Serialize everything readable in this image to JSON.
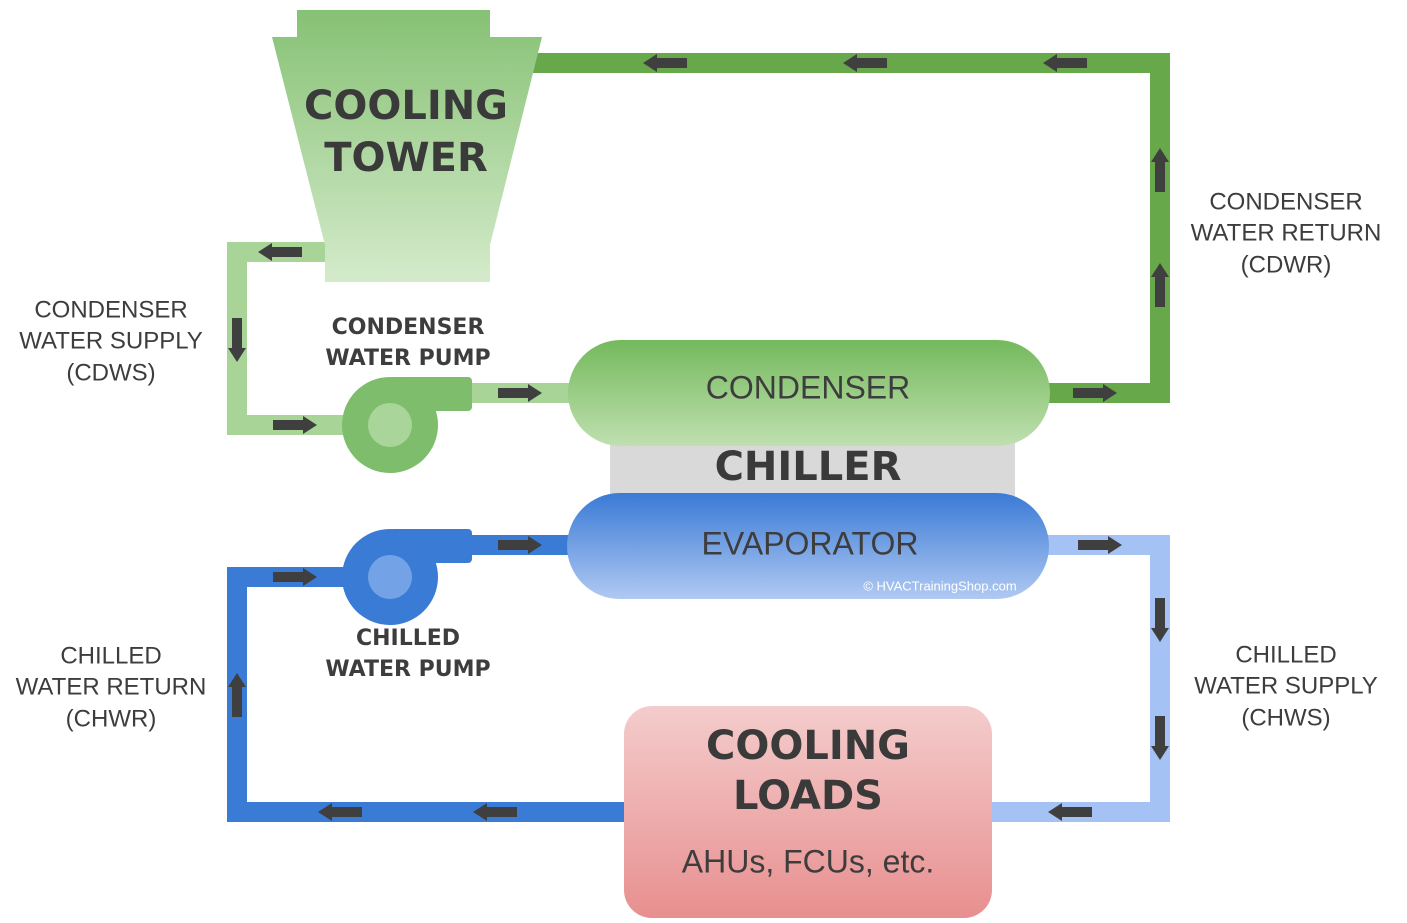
{
  "cooling_tower": {
    "label": [
      "COOLING",
      "TOWER"
    ]
  },
  "condenser_water_return": {
    "label": [
      "CONDENSER",
      "WATER RETURN",
      "(CDWR)"
    ]
  },
  "condenser_water_supply": {
    "label": [
      "CONDENSER",
      "WATER SUPPLY",
      "(CDWS)"
    ]
  },
  "condenser_water_pump": {
    "label": [
      "CONDENSER",
      "WATER PUMP"
    ]
  },
  "condenser": {
    "label": "CONDENSER"
  },
  "chiller": {
    "label": "CHILLER"
  },
  "evaporator": {
    "label": "EVAPORATOR",
    "credit": "© HVACTrainingShop.com"
  },
  "chilled_water_pump": {
    "label": [
      "CHILLED",
      "WATER PUMP"
    ]
  },
  "chilled_water_return": {
    "label": [
      "CHILLED",
      "WATER RETURN",
      "(CHWR)"
    ]
  },
  "chilled_water_supply": {
    "label": [
      "CHILLED",
      "WATER SUPPLY",
      "(CHWS)"
    ]
  },
  "cooling_loads": {
    "label": [
      "COOLING",
      "LOADS"
    ],
    "detail": "AHUs, FCUs, etc."
  }
}
